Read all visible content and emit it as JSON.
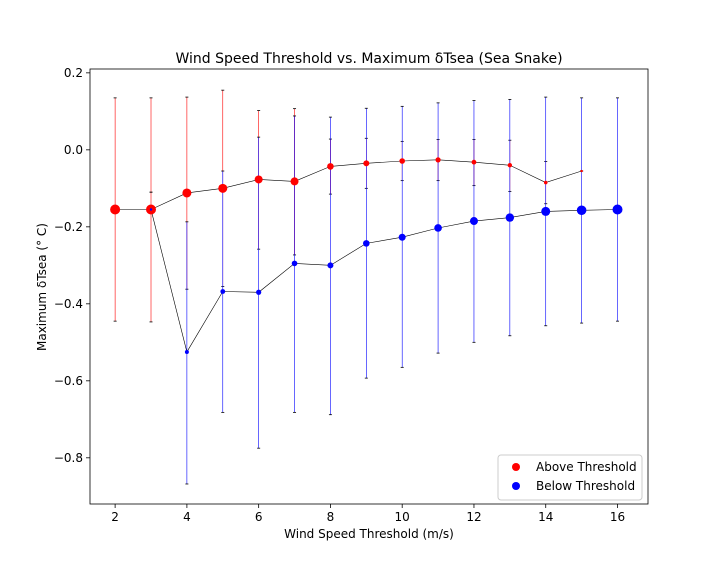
{
  "chart_data": {
    "type": "scatter",
    "title": "Wind Speed Threshold vs. Maximum δTsea (Sea Snake)",
    "xlabel": "Wind Speed Threshold (m/s)",
    "ylabel": "Maximum δTsea ($^\\circ$C)",
    "ylabel_display": "Maximum δTsea (° C)",
    "xlim": [
      1.3,
      16.85
    ],
    "ylim": [
      -0.92,
      0.21
    ],
    "xticks": [
      2,
      4,
      6,
      8,
      10,
      12,
      14,
      16
    ],
    "xtick_labels": [
      "2",
      "4",
      "6",
      "8",
      "10",
      "12",
      "14",
      "16"
    ],
    "yticks": [
      -0.8,
      -0.6,
      -0.4,
      -0.2,
      0.0,
      0.2
    ],
    "ytick_labels": [
      "−0.8",
      "−0.6",
      "−0.4",
      "−0.2",
      "0.0",
      "0.2"
    ],
    "grid": false,
    "legend_position": "lower-right",
    "series": [
      {
        "name": "Above Threshold",
        "color": "#ff0000",
        "x": [
          2,
          3,
          4,
          5,
          6,
          7,
          8,
          9,
          10,
          11,
          12,
          13,
          14,
          15
        ],
        "y": [
          -0.155,
          -0.155,
          -0.112,
          -0.1,
          -0.077,
          -0.082,
          -0.043,
          -0.035,
          -0.029,
          -0.026,
          -0.032,
          -0.04,
          -0.085,
          -0.055
        ],
        "err_low": [
          -0.445,
          -0.447,
          -0.362,
          -0.355,
          -0.258,
          -0.273,
          -0.115,
          -0.1,
          -0.08,
          -0.08,
          -0.093,
          -0.108,
          -0.14,
          -0.055
        ],
        "err_high": [
          0.135,
          0.135,
          0.137,
          0.155,
          0.102,
          0.107,
          0.028,
          0.03,
          0.022,
          0.027,
          0.027,
          0.025,
          -0.03,
          -0.055
        ],
        "marker_size": [
          5,
          5,
          4.5,
          4.5,
          4,
          4,
          3.3,
          3,
          2.8,
          2.6,
          2.4,
          2.2,
          1.8,
          1.2
        ]
      },
      {
        "name": "Below Threshold",
        "color": "#0000ff",
        "x": [
          3,
          4,
          5,
          6,
          7,
          8,
          9,
          10,
          11,
          12,
          13,
          14,
          15,
          16
        ],
        "y": [
          -0.155,
          -0.525,
          -0.368,
          -0.37,
          -0.295,
          -0.3,
          -0.243,
          -0.227,
          -0.203,
          -0.185,
          -0.176,
          -0.16,
          -0.157,
          -0.155
        ],
        "err_low": [
          -0.11,
          -0.868,
          -0.682,
          -0.775,
          -0.682,
          -0.688,
          -0.593,
          -0.565,
          -0.528,
          -0.5,
          -0.483,
          -0.457,
          -0.45,
          -0.445
        ],
        "err_high": [
          -0.11,
          -0.187,
          -0.055,
          0.033,
          0.088,
          0.085,
          0.108,
          0.113,
          0.122,
          0.128,
          0.131,
          0.137,
          0.135,
          0.135
        ],
        "marker_size": [
          1.2,
          2,
          2.4,
          2.6,
          2.8,
          3,
          3.3,
          3.5,
          3.8,
          4,
          4.2,
          4.5,
          4.8,
          5
        ]
      }
    ]
  }
}
